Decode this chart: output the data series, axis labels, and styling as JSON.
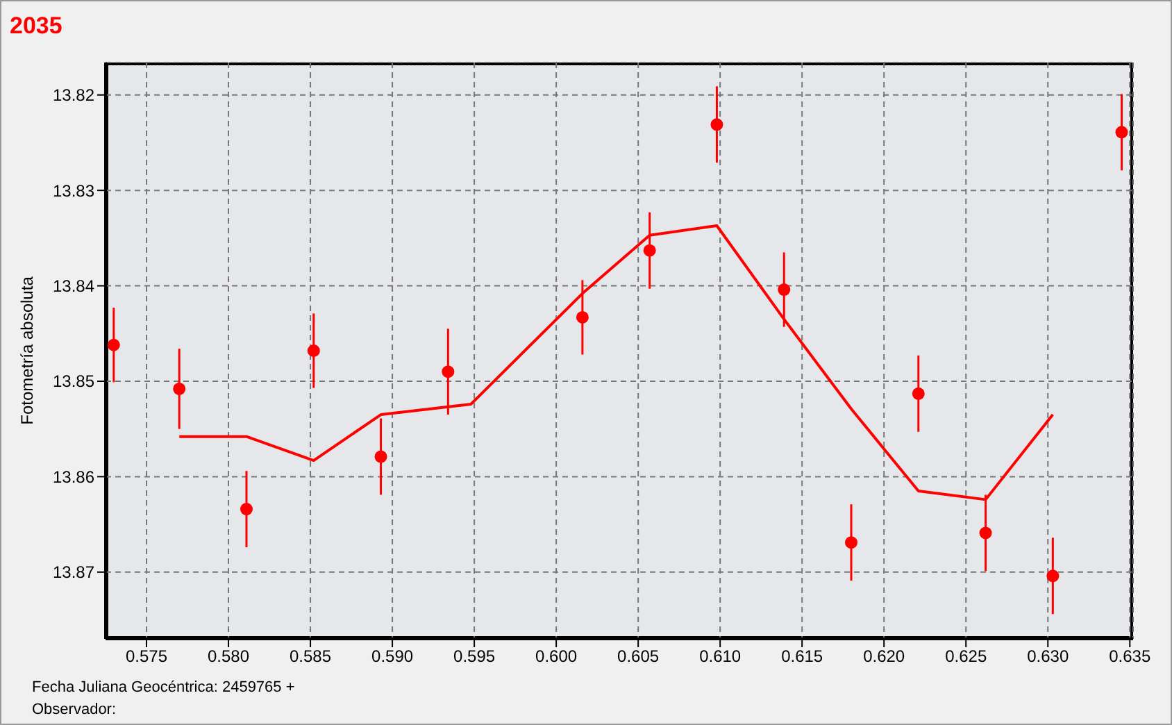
{
  "chart_data": {
    "type": "scatter",
    "title": "2035",
    "xlabel": "Fecha Juliana Geocéntrica: 2459765 +",
    "ylabel": "Fotometría absoluta",
    "annotations": [
      "Observador:"
    ],
    "xlim": [
      0.5725,
      0.6352
    ],
    "ylim": [
      13.877,
      13.8166
    ],
    "xticks": [
      {
        "value": 0.575,
        "label": "0.575"
      },
      {
        "value": 0.58,
        "label": "0.580"
      },
      {
        "value": 0.585,
        "label": "0.585"
      },
      {
        "value": 0.59,
        "label": "0.590"
      },
      {
        "value": 0.595,
        "label": "0.595"
      },
      {
        "value": 0.6,
        "label": "0.600"
      },
      {
        "value": 0.605,
        "label": "0.605"
      },
      {
        "value": 0.61,
        "label": "0.610"
      },
      {
        "value": 0.615,
        "label": "0.615"
      },
      {
        "value": 0.62,
        "label": "0.620"
      },
      {
        "value": 0.625,
        "label": "0.625"
      },
      {
        "value": 0.63,
        "label": "0.630"
      },
      {
        "value": 0.635,
        "label": "0.635"
      }
    ],
    "yticks": [
      13.82,
      13.83,
      13.84,
      13.85,
      13.86,
      13.87
    ],
    "grid": true,
    "series": [
      {
        "marker": "circle",
        "color": "#ff0000",
        "x": [
          0.573,
          0.577,
          0.5811,
          0.5852,
          0.5893,
          0.5934,
          0.6016,
          0.6057,
          0.6098,
          0.6139,
          0.618,
          0.6221,
          0.6262,
          0.6303,
          0.6345
        ],
        "values": [
          13.8462,
          13.8508,
          13.8634,
          13.8468,
          13.8579,
          13.849,
          13.8433,
          13.8363,
          13.8231,
          13.8404,
          13.8669,
          13.8513,
          13.8659,
          13.8704,
          13.8239
        ],
        "errors": [
          0.0039,
          0.0042,
          0.004,
          0.0039,
          0.004,
          0.0045,
          0.0039,
          0.004,
          0.004,
          0.0039,
          0.004,
          0.004,
          0.004,
          0.004,
          0.004
        ]
      },
      {
        "type": "line",
        "marker": "none",
        "color": "#ff0000",
        "line_style": "solid",
        "x": [
          0.577,
          0.5811,
          0.5852,
          0.5893,
          0.5948,
          0.6016,
          0.6057,
          0.6098,
          0.6139,
          0.618,
          0.6221,
          0.6262,
          0.6303
        ],
        "values": [
          13.8558,
          13.8558,
          13.8583,
          13.8535,
          13.8524,
          13.8408,
          13.8347,
          13.8337,
          13.8435,
          13.8529,
          13.8615,
          13.8624,
          13.8535
        ]
      }
    ]
  }
}
